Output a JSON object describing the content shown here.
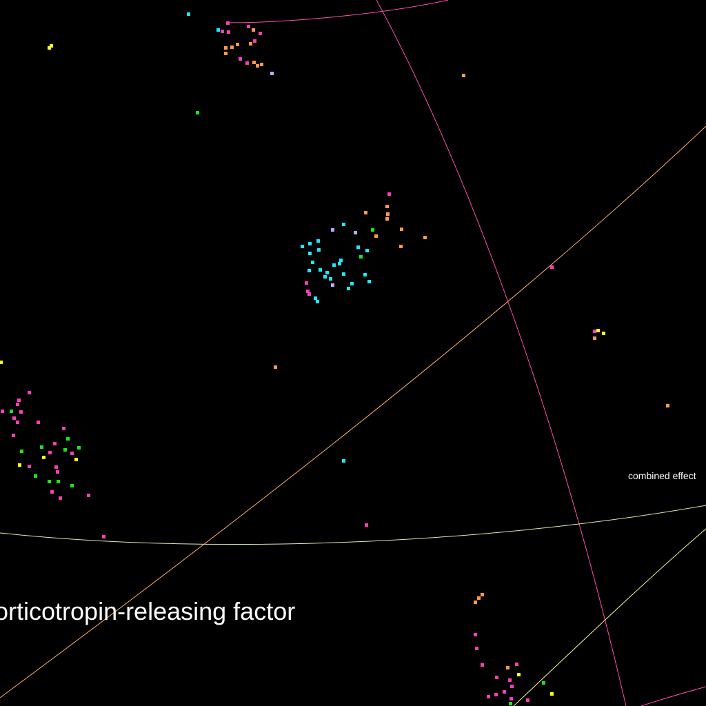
{
  "background_color": "#000000",
  "labels": {
    "large": "orticotropin-releasing factor",
    "small": "combined effect"
  },
  "curve_colors": {
    "magenta": "#ff4fb0",
    "orange": "#ffb06a",
    "pale_green": "#d8f0b0",
    "pale_yellow": "#ffff9a"
  },
  "dot_colors": {
    "magenta": "#ff3fb4",
    "orange": "#ff9a4a",
    "cyan": "#1ee8ff",
    "green": "#18e81a",
    "yellow": "#ffff20",
    "lavender": "#c0a8ff"
  },
  "clusters": [
    {
      "name": "top-cluster",
      "dot_count": 22
    },
    {
      "name": "center-cluster",
      "dot_count": 40
    },
    {
      "name": "left-cluster",
      "dot_count": 40
    },
    {
      "name": "bottom-cluster",
      "dot_count": 22
    }
  ]
}
